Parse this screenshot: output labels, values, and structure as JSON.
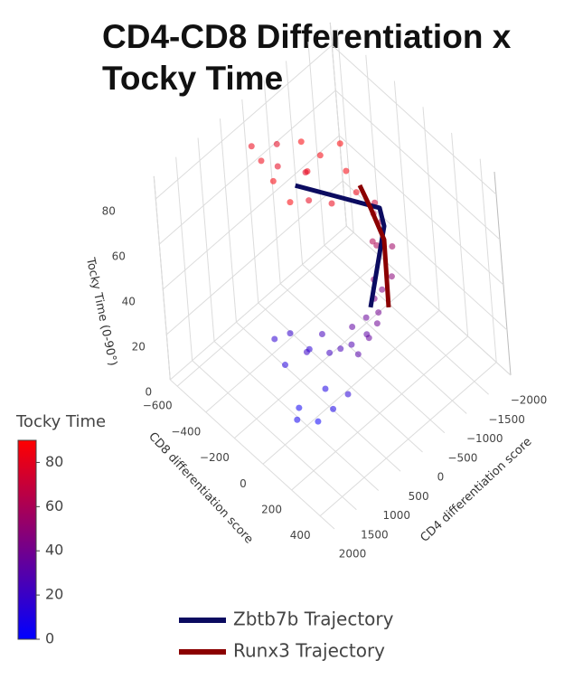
{
  "chart_data": {
    "type": "scatter3d",
    "title": "CD4-CD8 Differentiation x Tocky Time",
    "xaxis": {
      "title": "CD8 differentiation score",
      "range": [
        -650,
        500
      ],
      "ticks": [
        {
          "value": -600,
          "label": "−600"
        },
        {
          "value": -400,
          "label": "−400"
        },
        {
          "value": -200,
          "label": "−200"
        },
        0,
        200,
        400
      ]
    },
    "yaxis": {
      "title": "CD4 differentiation score",
      "range": [
        -2000,
        2000
      ],
      "ticks": [
        {
          "value": -2000,
          "label": "−2000"
        },
        {
          "value": -1500,
          "label": "−1500"
        },
        {
          "value": -1000,
          "label": "−1000"
        },
        {
          "value": -500,
          "label": "−500"
        },
        0,
        500,
        1000,
        1500,
        2000
      ]
    },
    "zaxis": {
      "title": "Tocky Time (0-90°)",
      "range": [
        0,
        90
      ],
      "ticks": [
        0,
        20,
        40,
        60,
        80
      ]
    },
    "colorbar": {
      "title": "Tocky Time",
      "range": [
        0,
        90
      ],
      "ticks": [
        0,
        20,
        40,
        60,
        80
      ],
      "colors": [
        "#0000ff",
        "#ff0000"
      ]
    },
    "points": {
      "x": [
        -191,
        -400,
        -300,
        -100,
        -50,
        -450,
        -250,
        0,
        -150,
        -350,
        50,
        -200,
        -500,
        -100,
        -250,
        100,
        80,
        130,
        150,
        60,
        180,
        110,
        200,
        90,
        160,
        40,
        140,
        150,
        100,
        200,
        50,
        120,
        0,
        180,
        80,
        13,
        -150,
        -200,
        100,
        -50,
        -250,
        50,
        -100,
        150,
        0,
        -300,
        -80
      ],
      "y": [
        27,
        400,
        -200,
        300,
        -400,
        -100,
        600,
        100,
        -600,
        200,
        -300,
        -300,
        300,
        700,
        -100,
        -500,
        -700,
        -300,
        -400,
        -600,
        -200,
        -800,
        -100,
        -450,
        -600,
        -700,
        -250,
        0,
        200,
        100,
        300,
        -100,
        400,
        300,
        100,
        586,
        400,
        800,
        700,
        1000,
        500,
        900,
        600,
        500,
        1200,
        700,
        300
      ],
      "z": [
        85,
        84,
        88,
        82,
        86,
        80,
        87,
        83,
        89,
        81,
        84,
        86,
        83,
        88,
        79,
        60,
        66,
        50,
        45,
        70,
        40,
        55,
        38,
        62,
        48,
        72,
        43,
        32,
        28,
        35,
        25,
        36,
        22,
        30,
        33,
        10,
        15,
        12,
        8,
        5,
        18,
        3,
        20,
        14,
        6,
        16,
        24
      ]
    },
    "series": [
      {
        "name": "Zbtb7b Trajectory",
        "color": "#0b0b60",
        "x": [
          -300,
          58,
          98,
          133
        ],
        "y": [
          0,
          -745,
          -698,
          -174
        ],
        "z": [
          72,
          70,
          65,
          40
        ]
      },
      {
        "name": "Runx3 Trajectory",
        "color": "#8b0000",
        "x": [
          -42,
          27,
          122,
          214
        ],
        "y": [
          -642,
          -640,
          -607,
          -330
        ],
        "z": [
          76,
          70,
          62,
          42
        ]
      }
    ]
  }
}
